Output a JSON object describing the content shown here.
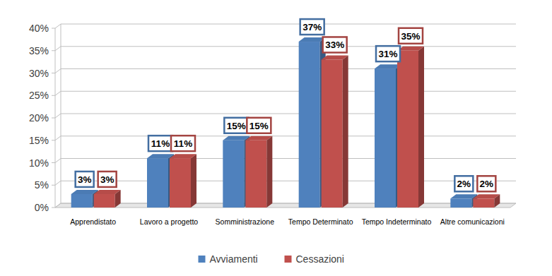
{
  "chart_data": {
    "type": "bar",
    "categories": [
      "Apprendistato",
      "Lavoro a progetto",
      "Somministrazione",
      "Tempo Determinato",
      "Tempo Indeterminato",
      "Altre comunicazioni"
    ],
    "series": [
      {
        "name": "Avviamenti",
        "color": "#4F81BD",
        "values": [
          3,
          11,
          15,
          37,
          31,
          2
        ],
        "value_labels": [
          "3%",
          "11%",
          "15%",
          "37%",
          "31%",
          "2%"
        ]
      },
      {
        "name": "Cessazioni",
        "color": "#C0504D",
        "values": [
          3,
          11,
          15,
          33,
          35,
          2
        ],
        "value_labels": [
          "3%",
          "11%",
          "15%",
          "33%",
          "35%",
          "2%"
        ]
      }
    ],
    "ylim": [
      0,
      40
    ],
    "yticks": [
      {
        "value": 0,
        "label": "0%"
      },
      {
        "value": 5,
        "label": "5%"
      },
      {
        "value": 10,
        "label": "10%"
      },
      {
        "value": 15,
        "label": "15%"
      },
      {
        "value": 20,
        "label": "20%"
      },
      {
        "value": 25,
        "label": "25%"
      },
      {
        "value": 30,
        "label": "30%"
      },
      {
        "value": 35,
        "label": "35%"
      },
      {
        "value": 40,
        "label": "40%"
      }
    ],
    "grid": true,
    "legend": "bottom",
    "data_labels": true
  }
}
